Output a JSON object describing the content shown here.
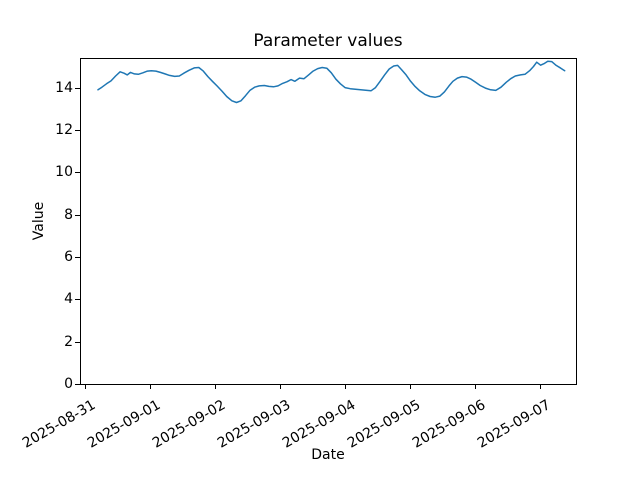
{
  "figure": {
    "background": "#ffffff",
    "text_color": "#000000"
  },
  "chart_data": {
    "type": "line",
    "title": "Parameter values",
    "xlabel": "Date",
    "ylabel": "Value",
    "grid": false,
    "legend": "none",
    "line_color": "#1f77b4",
    "line_width": 1.5,
    "x_unit": "days since 2025-08-31 00:00",
    "x_tick_days": [
      0,
      1,
      2,
      3,
      4,
      5,
      6,
      7
    ],
    "x_tick_labels": [
      "2025-08-31",
      "2025-09-01",
      "2025-09-02",
      "2025-09-03",
      "2025-09-04",
      "2025-09-05",
      "2025-09-06",
      "2025-09-07"
    ],
    "x_tick_rotation_deg": 30,
    "y_ticks": [
      0,
      2,
      4,
      6,
      8,
      10,
      12,
      14
    ],
    "xlim_days": [
      -0.077,
      7.554
    ],
    "ylim": [
      0,
      15.4
    ],
    "series": [
      {
        "name": "parameter",
        "x_days": [
          0.2,
          0.26,
          0.33,
          0.4,
          0.47,
          0.54,
          0.6,
          0.65,
          0.7,
          0.76,
          0.82,
          0.89,
          0.96,
          1.02,
          1.09,
          1.16,
          1.23,
          1.3,
          1.38,
          1.45,
          1.52,
          1.6,
          1.68,
          1.75,
          1.82,
          1.89,
          1.96,
          2.03,
          2.11,
          2.18,
          2.26,
          2.33,
          2.4,
          2.47,
          2.54,
          2.61,
          2.68,
          2.76,
          2.83,
          2.9,
          2.97,
          3.04,
          3.11,
          3.17,
          3.23,
          3.3,
          3.37,
          3.44,
          3.51,
          3.58,
          3.65,
          3.72,
          3.79,
          3.86,
          3.93,
          4.0,
          4.08,
          4.16,
          4.24,
          4.32,
          4.4,
          4.47,
          4.54,
          4.61,
          4.68,
          4.75,
          4.81,
          4.87,
          4.94,
          5.01,
          5.08,
          5.15,
          5.23,
          5.31,
          5.39,
          5.46,
          5.53,
          5.6,
          5.66,
          5.73,
          5.8,
          5.87,
          5.94,
          6.01,
          6.08,
          6.16,
          6.24,
          6.32,
          6.4,
          6.48,
          6.55,
          6.62,
          6.7,
          6.77,
          6.84,
          6.9,
          6.95,
          7.01,
          7.06,
          7.12,
          7.18,
          7.25,
          7.32,
          7.38
        ],
        "values": [
          13.9,
          14.02,
          14.18,
          14.32,
          14.55,
          14.75,
          14.68,
          14.6,
          14.72,
          14.65,
          14.63,
          14.7,
          14.78,
          14.8,
          14.78,
          14.72,
          14.65,
          14.58,
          14.53,
          14.55,
          14.68,
          14.82,
          14.93,
          14.95,
          14.78,
          14.52,
          14.3,
          14.08,
          13.82,
          13.58,
          13.38,
          13.3,
          13.38,
          13.62,
          13.88,
          14.02,
          14.08,
          14.1,
          14.06,
          14.04,
          14.08,
          14.2,
          14.28,
          14.38,
          14.3,
          14.45,
          14.42,
          14.6,
          14.78,
          14.9,
          14.95,
          14.92,
          14.7,
          14.4,
          14.18,
          14.0,
          13.95,
          13.92,
          13.9,
          13.88,
          13.85,
          14.0,
          14.3,
          14.6,
          14.88,
          15.02,
          15.05,
          14.85,
          14.6,
          14.3,
          14.05,
          13.85,
          13.68,
          13.58,
          13.55,
          13.6,
          13.8,
          14.08,
          14.3,
          14.45,
          14.52,
          14.5,
          14.4,
          14.25,
          14.1,
          13.98,
          13.9,
          13.87,
          14.02,
          14.25,
          14.42,
          14.55,
          14.6,
          14.63,
          14.8,
          15.0,
          15.2,
          15.06,
          15.13,
          15.25,
          15.23,
          15.05,
          14.92,
          14.8
        ]
      }
    ]
  }
}
